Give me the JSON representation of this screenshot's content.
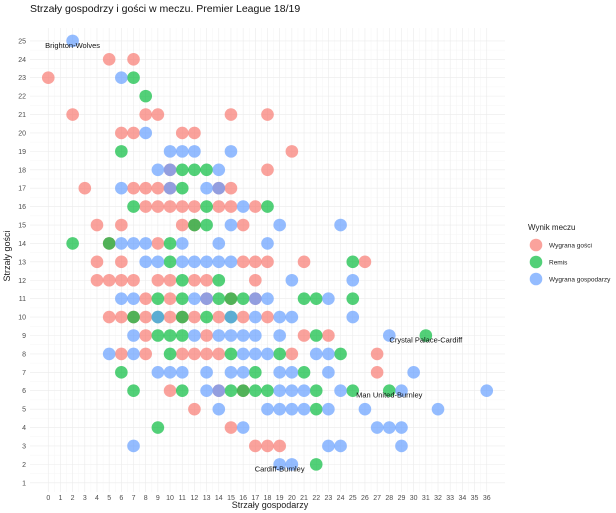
{
  "chart_data": {
    "type": "scatter",
    "title": "Strzały gospodrzy i gości w meczu. Premier League 18/19",
    "xlabel": "Strzały gospodarzy",
    "ylabel": "Strzały gości",
    "xlim": [
      -1.5,
      37.5
    ],
    "ylim": [
      0.5,
      25.7
    ],
    "x_ticks": [
      0,
      1,
      2,
      3,
      4,
      5,
      6,
      7,
      8,
      9,
      10,
      11,
      12,
      13,
      14,
      15,
      16,
      17,
      18,
      19,
      20,
      21,
      22,
      23,
      24,
      25,
      26,
      27,
      28,
      29,
      30,
      31,
      32,
      33,
      34,
      35,
      36
    ],
    "y_ticks": [
      1,
      2,
      3,
      4,
      5,
      6,
      7,
      8,
      9,
      10,
      11,
      12,
      13,
      14,
      15,
      16,
      17,
      18,
      19,
      20,
      21,
      22,
      23,
      24,
      25
    ],
    "grid": true,
    "legend": {
      "title": "Wynik meczu",
      "position": "right",
      "entries": [
        {
          "label": "Wygrana gości",
          "color": "#F8766D"
        },
        {
          "label": "Remis",
          "color": "#00BA38"
        },
        {
          "label": "Wygrana gospodarzy",
          "color": "#619CFF"
        }
      ]
    },
    "annotations": [
      {
        "text": "Brighton-Wolves",
        "x": 2,
        "y": 25
      },
      {
        "text": "Crystal Palace-Cardiff",
        "x": 31,
        "y": 9
      },
      {
        "text": "Man United-Burnley",
        "x": 28,
        "y": 6
      },
      {
        "text": "Cardiff-Burnley",
        "x": 19,
        "y": 2
      }
    ],
    "series": [
      {
        "name": "Wygrana gości",
        "color": "#F8766D",
        "points": [
          [
            5,
            24
          ],
          [
            7,
            24
          ],
          [
            0,
            23
          ],
          [
            2,
            21
          ],
          [
            8,
            21
          ],
          [
            9,
            21
          ],
          [
            15,
            21
          ],
          [
            18,
            21
          ],
          [
            6,
            20
          ],
          [
            7,
            20
          ],
          [
            11,
            20
          ],
          [
            12,
            20
          ],
          [
            20,
            19
          ],
          [
            18,
            18
          ],
          [
            10,
            18
          ],
          [
            3,
            17
          ],
          [
            7,
            17
          ],
          [
            8,
            17
          ],
          [
            9,
            17
          ],
          [
            10,
            17
          ],
          [
            14,
            17
          ],
          [
            15,
            17
          ],
          [
            8,
            16
          ],
          [
            9,
            16
          ],
          [
            10,
            16
          ],
          [
            11,
            16
          ],
          [
            12,
            16
          ],
          [
            14,
            16
          ],
          [
            15,
            16
          ],
          [
            17,
            16
          ],
          [
            4,
            15
          ],
          [
            6,
            15
          ],
          [
            11,
            15
          ],
          [
            12,
            15
          ],
          [
            16,
            15
          ],
          [
            5,
            14
          ],
          [
            9,
            14
          ],
          [
            4,
            13
          ],
          [
            6,
            13
          ],
          [
            16,
            13
          ],
          [
            17,
            13
          ],
          [
            18,
            13
          ],
          [
            21,
            13
          ],
          [
            26,
            13
          ],
          [
            4,
            12
          ],
          [
            5,
            12
          ],
          [
            6,
            12
          ],
          [
            7,
            12
          ],
          [
            9,
            12
          ],
          [
            10,
            12
          ],
          [
            12,
            12
          ],
          [
            13,
            12
          ],
          [
            17,
            12
          ],
          [
            8,
            11
          ],
          [
            10,
            11
          ],
          [
            13,
            11
          ],
          [
            15,
            11
          ],
          [
            17,
            11
          ],
          [
            5,
            10
          ],
          [
            6,
            10
          ],
          [
            7,
            10
          ],
          [
            8,
            10
          ],
          [
            10,
            10
          ],
          [
            11,
            10
          ],
          [
            12,
            10
          ],
          [
            14,
            10
          ],
          [
            16,
            10
          ],
          [
            18,
            10
          ],
          [
            8,
            9
          ],
          [
            13,
            9
          ],
          [
            21,
            9
          ],
          [
            23,
            9
          ],
          [
            6,
            8
          ],
          [
            8,
            8
          ],
          [
            11,
            8
          ],
          [
            12,
            8
          ],
          [
            13,
            8
          ],
          [
            14,
            8
          ],
          [
            20,
            8
          ],
          [
            27,
            8
          ],
          [
            27,
            7
          ],
          [
            10,
            6
          ],
          [
            14,
            6
          ],
          [
            16,
            6
          ],
          [
            12,
            5
          ],
          [
            15,
            4
          ],
          [
            18,
            3
          ],
          [
            19,
            3
          ],
          [
            17,
            3
          ]
        ]
      },
      {
        "name": "Remis",
        "color": "#00BA38",
        "points": [
          [
            7,
            23
          ],
          [
            8,
            22
          ],
          [
            6,
            19
          ],
          [
            11,
            18
          ],
          [
            12,
            18
          ],
          [
            13,
            18
          ],
          [
            11,
            17
          ],
          [
            7,
            16
          ],
          [
            13,
            16
          ],
          [
            18,
            16
          ],
          [
            12,
            15
          ],
          [
            13,
            15
          ],
          [
            2,
            14
          ],
          [
            5,
            14
          ],
          [
            10,
            14
          ],
          [
            10,
            13
          ],
          [
            25,
            13
          ],
          [
            11,
            12
          ],
          [
            14,
            12
          ],
          [
            9,
            11
          ],
          [
            11,
            11
          ],
          [
            14,
            11
          ],
          [
            15,
            11
          ],
          [
            16,
            11
          ],
          [
            21,
            11
          ],
          [
            22,
            11
          ],
          [
            25,
            11
          ],
          [
            7,
            10
          ],
          [
            9,
            10
          ],
          [
            11,
            10
          ],
          [
            13,
            10
          ],
          [
            15,
            10
          ],
          [
            9,
            9
          ],
          [
            10,
            9
          ],
          [
            11,
            9
          ],
          [
            22,
            9
          ],
          [
            31,
            9
          ],
          [
            10,
            8
          ],
          [
            15,
            8
          ],
          [
            19,
            8
          ],
          [
            24,
            8
          ],
          [
            6,
            7
          ],
          [
            17,
            7
          ],
          [
            21,
            7
          ],
          [
            7,
            6
          ],
          [
            11,
            6
          ],
          [
            15,
            6
          ],
          [
            16,
            6
          ],
          [
            17,
            6
          ],
          [
            18,
            6
          ],
          [
            22,
            6
          ],
          [
            25,
            6
          ],
          [
            28,
            6
          ],
          [
            22,
            5
          ],
          [
            9,
            4
          ],
          [
            22,
            2
          ]
        ]
      },
      {
        "name": "Wygrana gospodarzy",
        "color": "#619CFF",
        "points": [
          [
            2,
            25
          ],
          [
            6,
            23
          ],
          [
            8,
            20
          ],
          [
            10,
            19
          ],
          [
            11,
            19
          ],
          [
            12,
            19
          ],
          [
            15,
            19
          ],
          [
            9,
            18
          ],
          [
            10,
            18
          ],
          [
            14,
            18
          ],
          [
            6,
            17
          ],
          [
            10,
            17
          ],
          [
            13,
            17
          ],
          [
            14,
            17
          ],
          [
            16,
            16
          ],
          [
            15,
            15
          ],
          [
            19,
            15
          ],
          [
            24,
            15
          ],
          [
            6,
            14
          ],
          [
            7,
            14
          ],
          [
            8,
            14
          ],
          [
            11,
            14
          ],
          [
            14,
            14
          ],
          [
            18,
            14
          ],
          [
            8,
            13
          ],
          [
            9,
            13
          ],
          [
            11,
            13
          ],
          [
            12,
            13
          ],
          [
            13,
            13
          ],
          [
            14,
            13
          ],
          [
            15,
            13
          ],
          [
            20,
            12
          ],
          [
            25,
            12
          ],
          [
            6,
            11
          ],
          [
            7,
            11
          ],
          [
            12,
            11
          ],
          [
            13,
            11
          ],
          [
            17,
            11
          ],
          [
            18,
            11
          ],
          [
            23,
            11
          ],
          [
            9,
            10
          ],
          [
            15,
            10
          ],
          [
            17,
            10
          ],
          [
            19,
            10
          ],
          [
            20,
            10
          ],
          [
            25,
            10
          ],
          [
            7,
            9
          ],
          [
            12,
            9
          ],
          [
            14,
            9
          ],
          [
            15,
            9
          ],
          [
            16,
            9
          ],
          [
            17,
            9
          ],
          [
            19,
            9
          ],
          [
            28,
            9
          ],
          [
            5,
            8
          ],
          [
            7,
            8
          ],
          [
            16,
            8
          ],
          [
            17,
            8
          ],
          [
            18,
            8
          ],
          [
            22,
            8
          ],
          [
            23,
            8
          ],
          [
            9,
            7
          ],
          [
            10,
            7
          ],
          [
            11,
            7
          ],
          [
            13,
            7
          ],
          [
            15,
            7
          ],
          [
            16,
            7
          ],
          [
            19,
            7
          ],
          [
            20,
            7
          ],
          [
            23,
            7
          ],
          [
            30,
            7
          ],
          [
            13,
            6
          ],
          [
            14,
            6
          ],
          [
            19,
            6
          ],
          [
            20,
            6
          ],
          [
            21,
            6
          ],
          [
            24,
            6
          ],
          [
            29,
            6
          ],
          [
            36,
            6
          ],
          [
            18,
            5
          ],
          [
            19,
            5
          ],
          [
            20,
            5
          ],
          [
            21,
            5
          ],
          [
            23,
            5
          ],
          [
            26,
            5
          ],
          [
            32,
            5
          ],
          [
            14,
            5
          ],
          [
            16,
            4
          ],
          [
            27,
            4
          ],
          [
            28,
            4
          ],
          [
            29,
            4
          ],
          [
            7,
            3
          ],
          [
            23,
            3
          ],
          [
            24,
            3
          ],
          [
            29,
            3
          ],
          [
            19,
            2
          ],
          [
            20,
            2
          ]
        ]
      }
    ]
  }
}
